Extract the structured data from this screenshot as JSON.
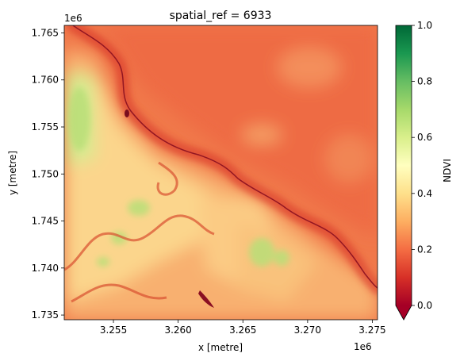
{
  "chart_data": {
    "type": "heatmap",
    "title": "spatial_ref = 6933",
    "xlabel": "x [metre]",
    "ylabel": "y [metre]",
    "x_offset_label": "1e6",
    "y_offset_label": "1e6",
    "xlim": [
      3.2512,
      3.2754
    ],
    "ylim": [
      1.7345,
      1.7658
    ],
    "x_ticks": [
      3.255,
      3.26,
      3.265,
      3.27,
      3.275
    ],
    "x_tick_labels": [
      "3.255",
      "3.260",
      "3.265",
      "3.270",
      "3.275"
    ],
    "y_ticks": [
      1.735,
      1.74,
      1.745,
      1.75,
      1.755,
      1.76,
      1.765
    ],
    "y_tick_labels": [
      "1.735",
      "1.740",
      "1.745",
      "1.750",
      "1.755",
      "1.760",
      "1.765"
    ],
    "colorbar": {
      "label": "NDVI",
      "colormap": "RdYlGn",
      "range": [
        0.0,
        1.0
      ],
      "extend": "min",
      "ticks": [
        0.0,
        0.2,
        0.4,
        0.6,
        0.8,
        1.0
      ],
      "tick_labels": [
        "0.0",
        "0.2",
        "0.4",
        "0.6",
        "0.8",
        "1.0"
      ]
    },
    "grid": false
  }
}
